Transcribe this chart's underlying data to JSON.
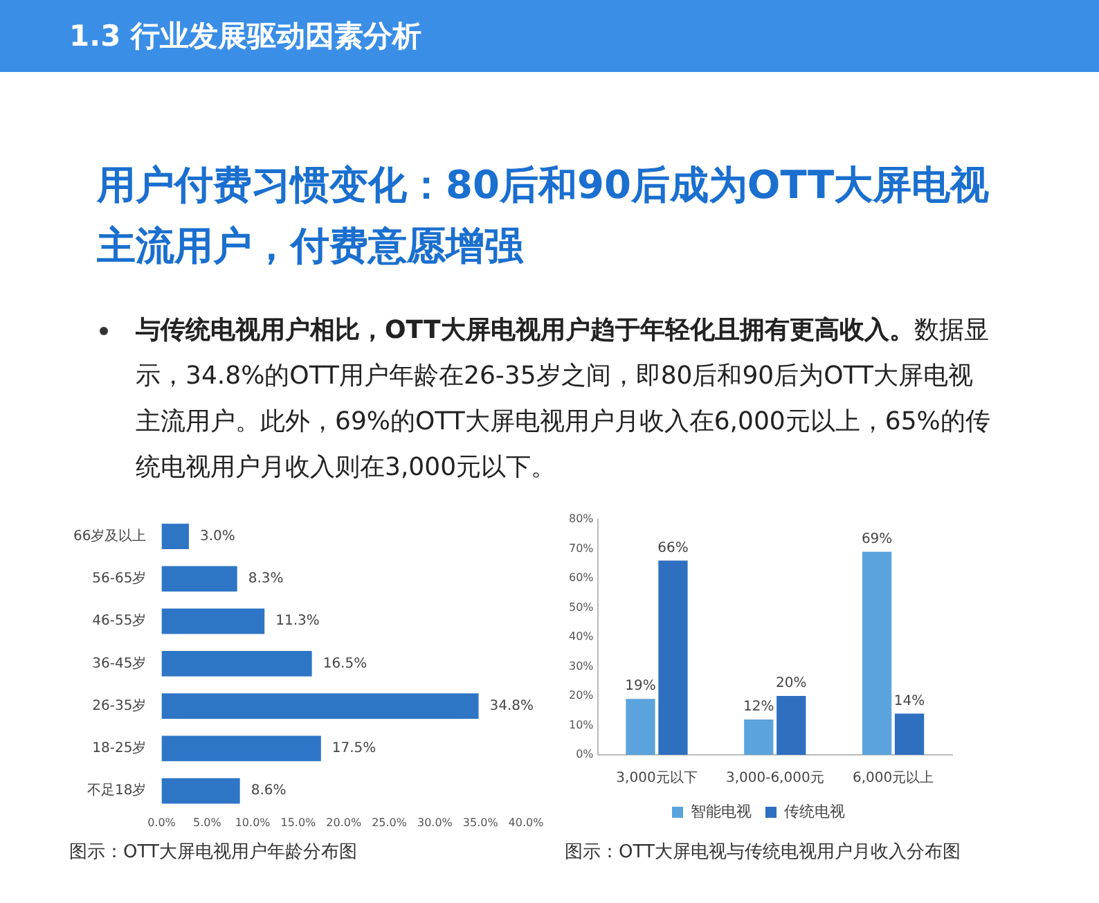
{
  "chart_data": [
    {
      "type": "other",
      "title": "1.3 行业发展驱动因素分析",
      "subtitle": "用户付费习惯变化：80后和90后成为OTT大屏电视主流用户，付费意愿增强",
      "annotations": [
        "与传统电视用户相比，OTT大屏电视用户趋于年轻化且拥有更高收入。",
        "数据显示，34.8%的OTT用户年龄在26-35岁之间，即80后和90后为OTT大屏电视主流用户。此外，69%的OTT大屏电视用户月收入在6,000元以上，65%的传统电视用户月收入则在3,000元以下。"
      ]
    },
    {
      "type": "bar",
      "orientation": "horizontal",
      "categories": [
        "66岁及以上",
        "56-65岁",
        "46-55岁",
        "36-45岁",
        "26-35岁",
        "18-25岁",
        "不足18岁"
      ],
      "series": [
        {
          "color": "#2e75c6",
          "values": [
            3.0,
            8.3,
            11.3,
            16.5,
            34.8,
            17.5,
            8.6
          ],
          "value_labels": [
            "3.0%",
            "8.3%",
            "11.3%",
            "16.5%",
            "34.8%",
            "17.5%",
            "8.6%"
          ]
        }
      ],
      "xlim": [
        0,
        40
      ],
      "xticks": [
        {
          "value": 0,
          "label": "0.0%"
        },
        {
          "value": 5,
          "label": "5.0%"
        },
        {
          "value": 10,
          "label": "10.0%"
        },
        {
          "value": 15,
          "label": "15.0%"
        },
        {
          "value": 20,
          "label": "20.0%"
        },
        {
          "value": 25,
          "label": "25.0%"
        },
        {
          "value": 30,
          "label": "30.0%"
        },
        {
          "value": 35,
          "label": "35.0%"
        },
        {
          "value": 40,
          "label": "40.0%"
        }
      ],
      "legend": false,
      "annotations": [
        "图示：OTT大屏电视用户年龄分布图"
      ]
    },
    {
      "type": "bar",
      "categories": [
        "3,000元以下",
        "3,000-6,000元",
        "6,000元以上"
      ],
      "series": [
        {
          "name": "智能电视",
          "color": "#5ba3dc",
          "values": [
            19,
            12,
            69
          ],
          "value_labels": [
            "19%",
            "12%",
            "69%"
          ]
        },
        {
          "name": "传统电视",
          "color": "#2e6fc0",
          "values": [
            66,
            20,
            14
          ],
          "value_labels": [
            "66%",
            "20%",
            "14%"
          ]
        }
      ],
      "ylim": [
        0,
        80
      ],
      "yticks": [
        {
          "value": 0,
          "label": "0%"
        },
        {
          "value": 10,
          "label": "10%"
        },
        {
          "value": 20,
          "label": "20%"
        },
        {
          "value": 30,
          "label": "30%"
        },
        {
          "value": 40,
          "label": "40%"
        },
        {
          "value": 50,
          "label": "50%"
        },
        {
          "value": 60,
          "label": "60%"
        },
        {
          "value": 70,
          "label": "70%"
        },
        {
          "value": 80,
          "label": "80%"
        }
      ],
      "legend": "bottom",
      "annotations": [
        "图示：OTT大屏电视与传统电视用户月收入分布图"
      ]
    }
  ]
}
